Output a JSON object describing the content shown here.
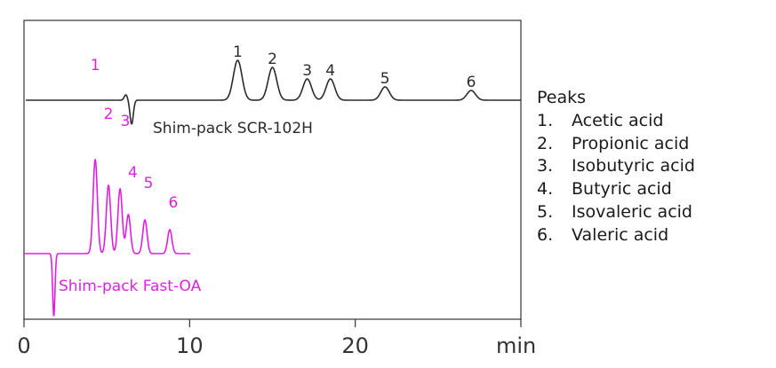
{
  "chart_data": {
    "type": "line",
    "x_unit": "min",
    "xlim": [
      0,
      30
    ],
    "x_ticks": [
      0,
      10,
      20
    ],
    "grid": false,
    "traces": [
      {
        "name": "Shim-pack SCR-102H",
        "color": "#2b2b2b",
        "void_time": 6.5,
        "peaks": [
          {
            "label": "1",
            "rt": 12.9
          },
          {
            "label": "2",
            "rt": 15.0
          },
          {
            "label": "3",
            "rt": 17.1
          },
          {
            "label": "4",
            "rt": 18.5
          },
          {
            "label": "5",
            "rt": 21.8
          },
          {
            "label": "6",
            "rt": 27.0
          }
        ]
      },
      {
        "name": "Shim-pack Fast-OA",
        "color": "#e020e0",
        "void_time": 1.8,
        "peaks": [
          {
            "label": "1",
            "rt": 4.3
          },
          {
            "label": "2",
            "rt": 5.1
          },
          {
            "label": "3",
            "rt": 5.8
          },
          {
            "label": "4",
            "rt": 6.3
          },
          {
            "label": "5",
            "rt": 7.3
          },
          {
            "label": "6",
            "rt": 8.8
          }
        ]
      }
    ]
  },
  "legend": {
    "title": "Peaks",
    "items": [
      {
        "num": "1.",
        "name": "Acetic acid"
      },
      {
        "num": "2.",
        "name": "Propionic acid"
      },
      {
        "num": "3.",
        "name": "Isobutyric acid"
      },
      {
        "num": "4.",
        "name": "Butyric acid"
      },
      {
        "num": "5.",
        "name": "Isovaleric acid"
      },
      {
        "num": "6.",
        "name": "Valeric acid"
      }
    ]
  }
}
